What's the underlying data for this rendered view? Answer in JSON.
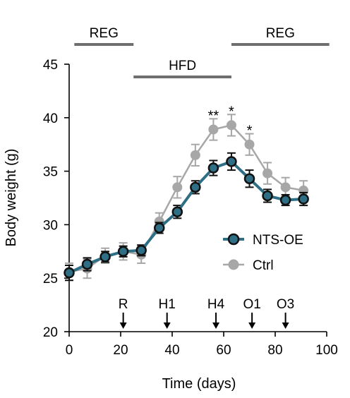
{
  "chart_data": {
    "type": "line",
    "xlabel": "Time (days)",
    "ylabel": "Body weight (g)",
    "xlim": [
      0,
      100
    ],
    "ylim": [
      20,
      45
    ],
    "xticks": [
      "0",
      "20",
      "40",
      "60",
      "80",
      "100"
    ],
    "yticks": [
      "20",
      "25",
      "30",
      "35",
      "40",
      "45"
    ],
    "grid": false,
    "legend": "center-right",
    "series": [
      {
        "name": "NTS-OE",
        "color": "#2e6f86",
        "marker_fill": "#2e6f86",
        "marker_edge": "#111111",
        "x": [
          0,
          7,
          14,
          21,
          28,
          35,
          42,
          49,
          56,
          63,
          70,
          77,
          84,
          91
        ],
        "y": [
          25.5,
          26.3,
          27.0,
          27.5,
          27.6,
          29.7,
          31.2,
          33.5,
          35.3,
          35.9,
          34.3,
          32.7,
          32.3,
          32.4
        ],
        "err": [
          0.7,
          0.6,
          0.5,
          0.5,
          0.5,
          0.5,
          0.6,
          0.6,
          0.7,
          0.8,
          0.8,
          0.6,
          0.5,
          0.6
        ]
      },
      {
        "name": "Ctrl",
        "color": "#a7a7a7",
        "marker_fill": "#a7a7a7",
        "marker_edge": "#a7a7a7",
        "x": [
          0,
          7,
          14,
          21,
          28,
          35,
          42,
          49,
          56,
          63,
          70,
          77,
          84,
          91
        ],
        "y": [
          25.6,
          25.9,
          27.1,
          27.5,
          27.2,
          30.3,
          33.5,
          36.5,
          38.9,
          39.3,
          37.5,
          34.8,
          33.5,
          33.2
        ],
        "err": [
          0.8,
          0.9,
          0.7,
          0.8,
          0.8,
          0.8,
          1.0,
          1.0,
          1.0,
          1.0,
          1.0,
          1.0,
          0.9,
          0.9
        ]
      }
    ],
    "significance": [
      {
        "label": "**",
        "x": 56,
        "y": 39.9
      },
      {
        "label": "*",
        "x": 63,
        "y": 40.3
      },
      {
        "label": "*",
        "x": 70,
        "y": 38.5
      }
    ],
    "diet_periods": [
      {
        "label": "REG",
        "x_start": 2,
        "x_end": 25,
        "row": "top"
      },
      {
        "label": "HFD",
        "x_start": 25,
        "x_end": 63,
        "row": "middle"
      },
      {
        "label": "REG",
        "x_start": 63,
        "x_end": 101,
        "row": "top"
      }
    ],
    "event_markers": [
      {
        "label": "R",
        "x": 21
      },
      {
        "label": "H1",
        "x": 38
      },
      {
        "label": "H4",
        "x": 57
      },
      {
        "label": "O1",
        "x": 71
      },
      {
        "label": "O3",
        "x": 84
      }
    ]
  }
}
